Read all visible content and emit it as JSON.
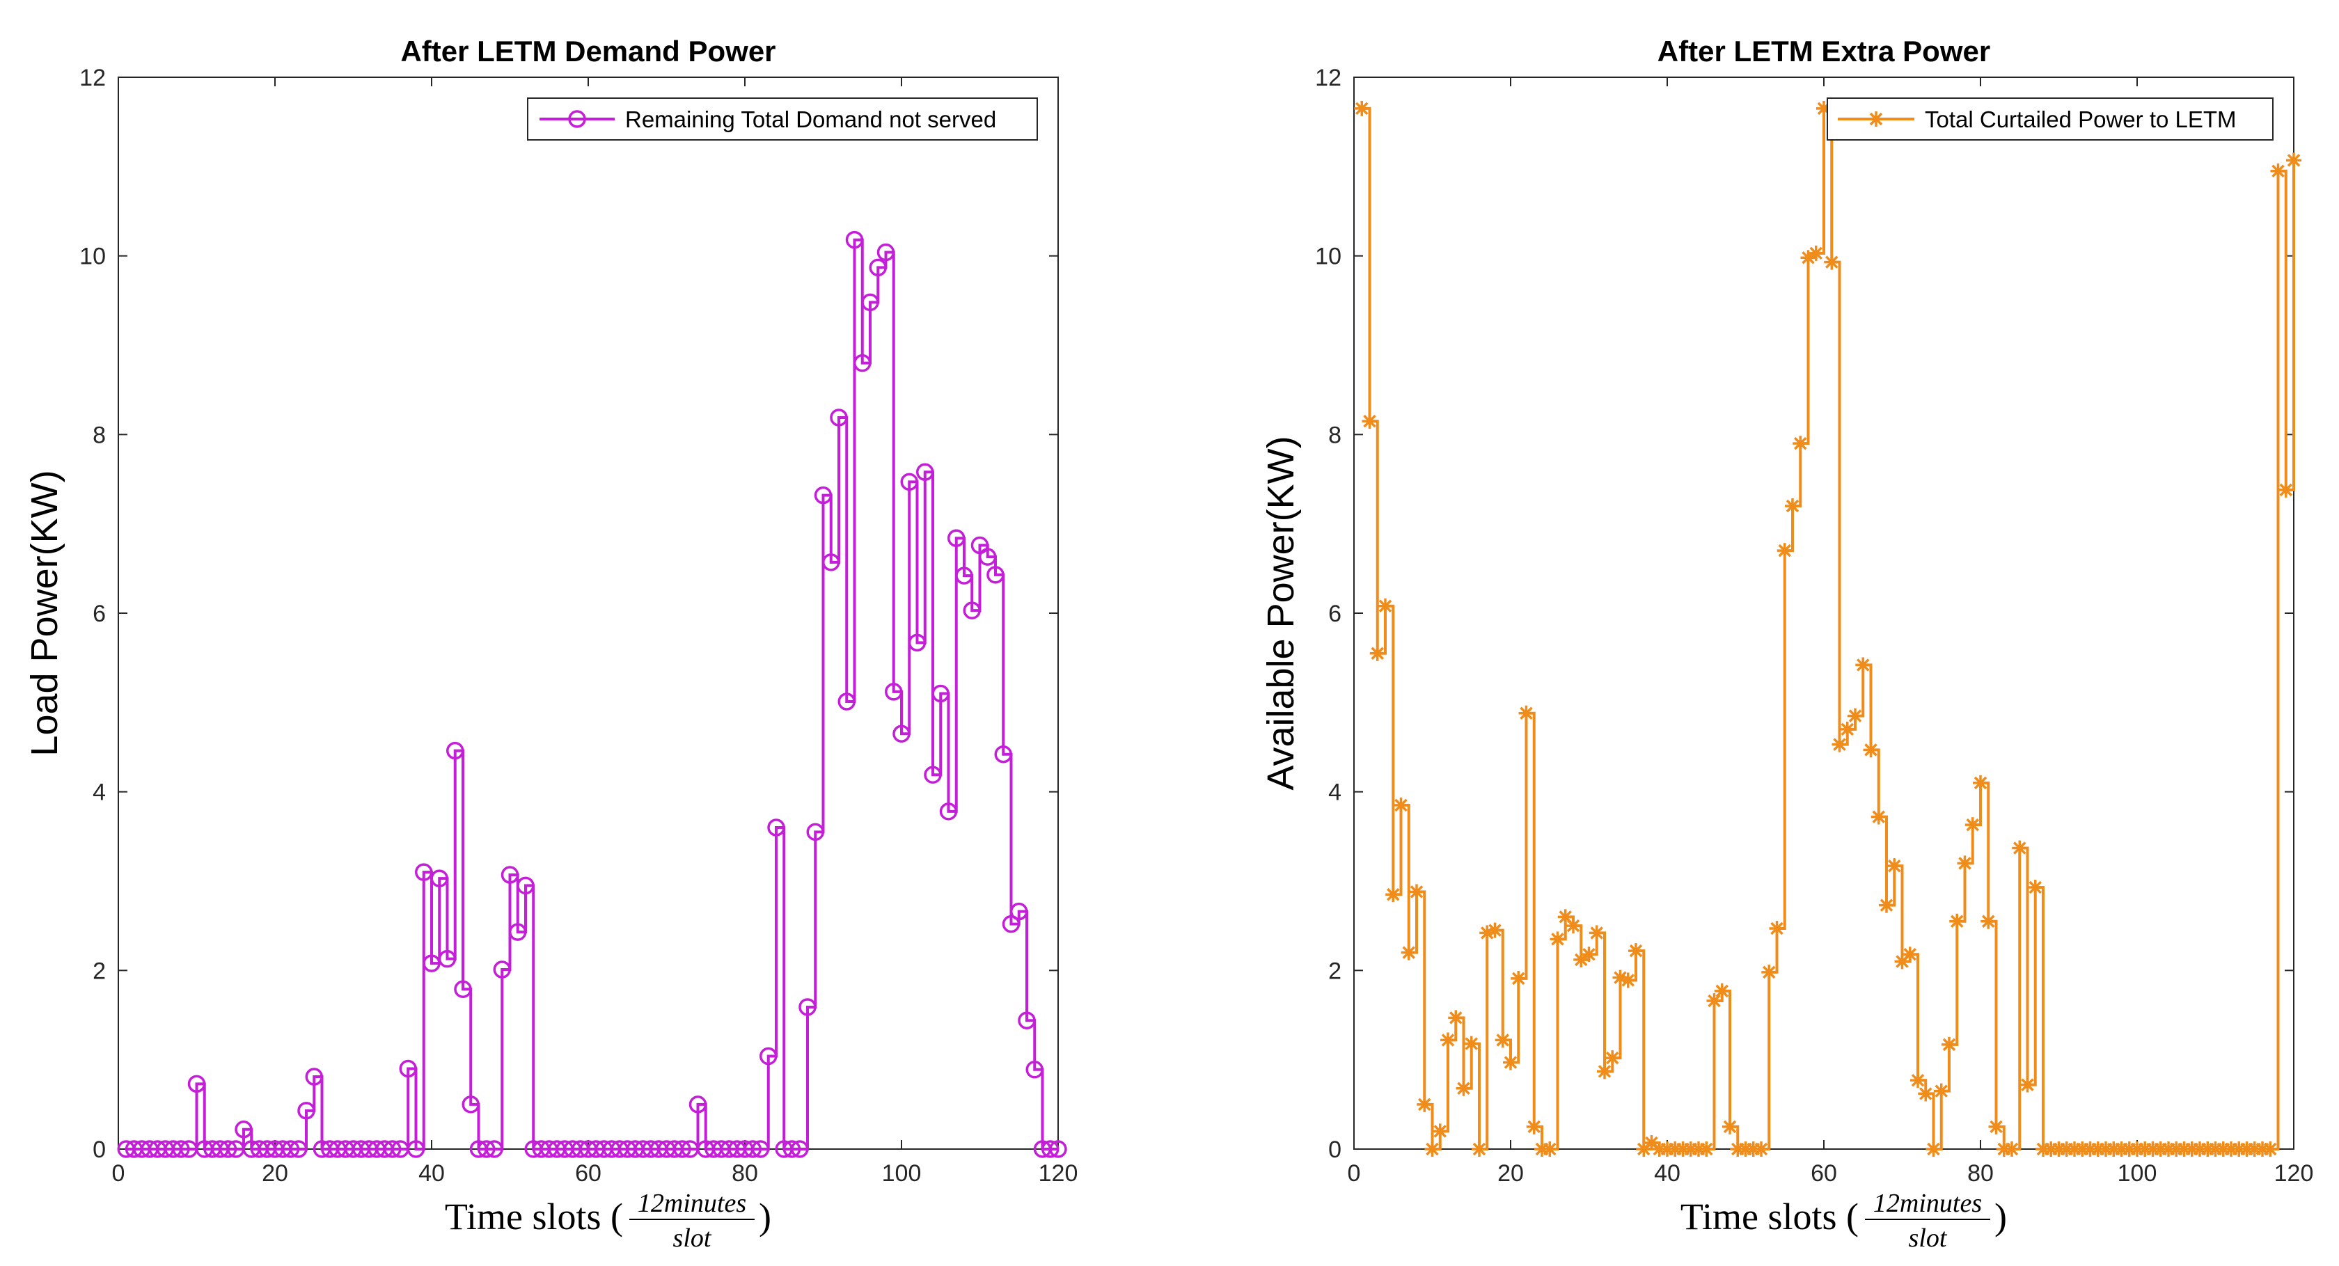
{
  "chart_data": [
    {
      "type": "line",
      "step": true,
      "title": "After LETM Demand Power",
      "ylabel": "Load Power(KW)",
      "xlabel": {
        "prefix": "Time slots (",
        "numerator": "12minutes",
        "denominator": "slot",
        "suffix": ")"
      },
      "xlim": [
        0,
        120
      ],
      "ylim": [
        0,
        12
      ],
      "xticks": [
        0,
        20,
        40,
        60,
        80,
        100,
        120
      ],
      "yticks": [
        0,
        2,
        4,
        6,
        8,
        10,
        12
      ],
      "legend_position": "top-right",
      "series": [
        {
          "name": "Remaining Total Domand not served",
          "color": "#c41ed9",
          "marker": "circle",
          "x_start": 1,
          "values": [
            0,
            0,
            0,
            0,
            0,
            0,
            0,
            0,
            0,
            0.73,
            0,
            0,
            0,
            0,
            0,
            0.22,
            0,
            0,
            0,
            0,
            0,
            0,
            0,
            0.43,
            0.81,
            0,
            0,
            0,
            0,
            0,
            0,
            0,
            0,
            0,
            0,
            0,
            0.9,
            0,
            3.1,
            2.08,
            3.03,
            2.13,
            4.46,
            1.79,
            0.5,
            0,
            0,
            0,
            2.01,
            3.07,
            2.43,
            2.95,
            0,
            0,
            0,
            0,
            0,
            0,
            0,
            0,
            0,
            0,
            0,
            0,
            0,
            0,
            0,
            0,
            0,
            0,
            0,
            0,
            0,
            0.5,
            0,
            0,
            0,
            0,
            0,
            0,
            0,
            0,
            1.04,
            3.6,
            0,
            0,
            0,
            1.59,
            3.55,
            7.32,
            6.57,
            8.19,
            5.01,
            10.18,
            8.8,
            9.48,
            9.87,
            10.04,
            5.12,
            4.65,
            7.47,
            5.67,
            7.58,
            4.19,
            5.1,
            3.78,
            6.84,
            6.42,
            6.03,
            6.76,
            6.63,
            6.43,
            4.42,
            2.52,
            2.66,
            1.44,
            0.89,
            0,
            0,
            0
          ]
        }
      ]
    },
    {
      "type": "line",
      "step": true,
      "title": "After LETM Extra Power",
      "ylabel": "Available Power(KW)",
      "xlabel": {
        "prefix": "Time slots (",
        "numerator": "12minutes",
        "denominator": "slot",
        "suffix": ")"
      },
      "xlim": [
        0,
        120
      ],
      "ylim": [
        0,
        12
      ],
      "xticks": [
        0,
        20,
        40,
        60,
        80,
        100,
        120
      ],
      "yticks": [
        0,
        2,
        4,
        6,
        8,
        10,
        12
      ],
      "legend_position": "top-right",
      "series": [
        {
          "name": "Total Curtailed Power to LETM",
          "color": "#f08c1a",
          "marker": "asterisk",
          "x_start": 1,
          "values": [
            11.65,
            8.15,
            5.55,
            6.08,
            2.85,
            3.85,
            2.2,
            2.88,
            0.5,
            0,
            0.2,
            1.22,
            1.47,
            0.68,
            1.18,
            0,
            2.42,
            2.45,
            1.22,
            0.97,
            1.91,
            4.88,
            0.25,
            0,
            0,
            2.35,
            2.6,
            2.5,
            2.12,
            2.18,
            2.42,
            0.87,
            1.02,
            1.92,
            1.89,
            2.22,
            0,
            0.07,
            0,
            0,
            0,
            0,
            0,
            0,
            0,
            1.66,
            1.77,
            0.25,
            0,
            0,
            0,
            0,
            1.98,
            2.47,
            6.7,
            7.2,
            7.9,
            9.98,
            10.03,
            11.65,
            9.93,
            4.53,
            4.7,
            4.85,
            5.42,
            4.47,
            3.72,
            2.73,
            3.17,
            2.1,
            2.18,
            0.77,
            0.62,
            0,
            0.65,
            1.17,
            2.55,
            3.2,
            3.63,
            4.1,
            2.55,
            0.25,
            0,
            0,
            3.37,
            0.72,
            2.93,
            0,
            0,
            0,
            0,
            0,
            0,
            0,
            0,
            0,
            0,
            0,
            0,
            0,
            0,
            0,
            0,
            0,
            0,
            0,
            0,
            0,
            0,
            0,
            0,
            0,
            0,
            0,
            0,
            0,
            0,
            10.95,
            7.38,
            11.07
          ]
        }
      ]
    }
  ]
}
